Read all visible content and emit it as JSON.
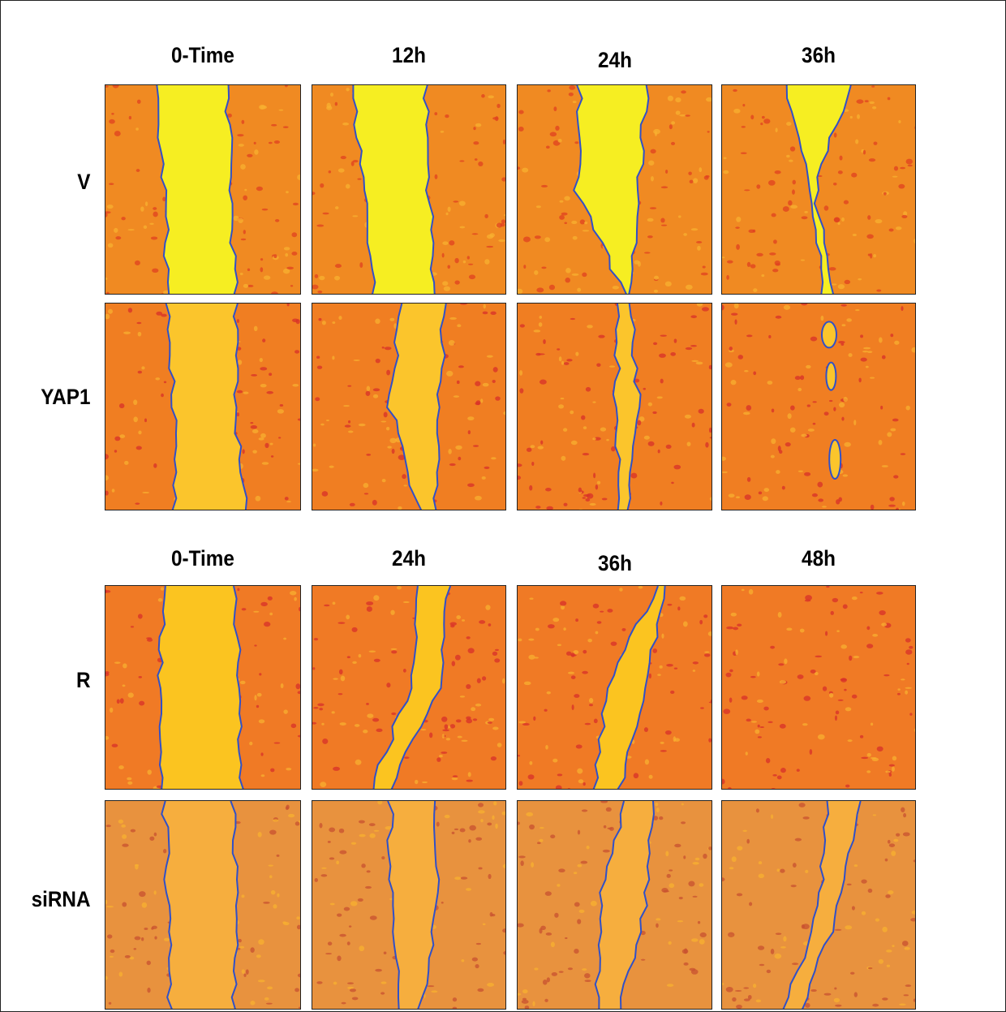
{
  "panels": [
    {
      "columns": [
        "0-Time",
        "12h",
        "24h",
        "36h"
      ],
      "rows": [
        "V",
        "YAP1"
      ]
    },
    {
      "columns": [
        "0-Time",
        "24h",
        "36h",
        "48h"
      ],
      "rows": [
        "R",
        "siRNA"
      ]
    }
  ]
}
